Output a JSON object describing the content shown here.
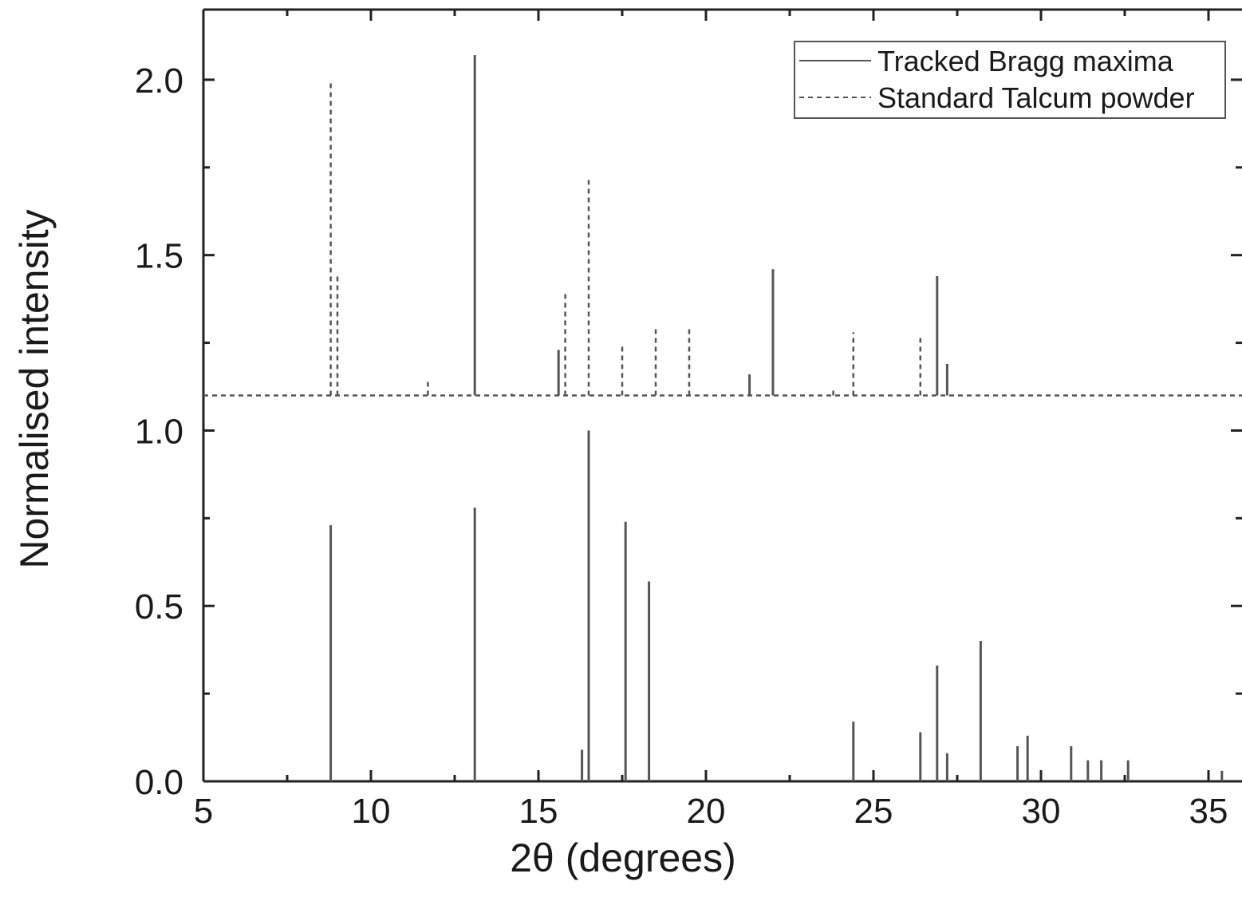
{
  "chart_data": {
    "type": "bar",
    "subtype": "stick-pattern",
    "title": "",
    "xlabel": "2θ (degrees)",
    "ylabel": "Normalised intensity",
    "xlim": [
      5,
      36
    ],
    "ylim": [
      0,
      2.2
    ],
    "x_ticks": [
      "5",
      "10",
      "15",
      "20",
      "25",
      "30",
      "35"
    ],
    "y_ticks": [
      "0.0",
      "0.5",
      "1.0",
      "1.5",
      "2.0"
    ],
    "grid": false,
    "legend_position": "top-right",
    "series": [
      {
        "name": "Tracked Bragg maxima",
        "line_style": "solid",
        "baseline": 0,
        "points": [
          {
            "x": 8.8,
            "y": 0.73
          },
          {
            "x": 13.1,
            "y": 0.78
          },
          {
            "x": 16.3,
            "y": 0.09
          },
          {
            "x": 16.5,
            "y": 1.0
          },
          {
            "x": 17.6,
            "y": 0.74
          },
          {
            "x": 18.3,
            "y": 0.57
          },
          {
            "x": 24.4,
            "y": 0.17
          },
          {
            "x": 26.4,
            "y": 0.14
          },
          {
            "x": 26.9,
            "y": 0.33
          },
          {
            "x": 27.2,
            "y": 0.08
          },
          {
            "x": 28.2,
            "y": 0.4
          },
          {
            "x": 29.3,
            "y": 0.1
          },
          {
            "x": 29.6,
            "y": 0.13
          },
          {
            "x": 30.9,
            "y": 0.1
          },
          {
            "x": 31.4,
            "y": 0.06
          },
          {
            "x": 31.8,
            "y": 0.06
          },
          {
            "x": 32.6,
            "y": 0.06
          },
          {
            "x": 35.4,
            "y": 0.03
          }
        ]
      },
      {
        "name": "Standard Talcum powder",
        "line_style": "dashed",
        "baseline": 1.1,
        "points": [
          {
            "x": 8.8,
            "y": 2.0
          },
          {
            "x": 9.0,
            "y": 1.44
          },
          {
            "x": 11.7,
            "y": 1.14
          },
          {
            "x": 14.2,
            "y": 1.105
          },
          {
            "x": 15.8,
            "y": 1.39
          },
          {
            "x": 16.5,
            "y": 1.72
          },
          {
            "x": 17.5,
            "y": 1.25
          },
          {
            "x": 18.5,
            "y": 1.3
          },
          {
            "x": 19.5,
            "y": 1.29
          },
          {
            "x": 23.8,
            "y": 1.12
          },
          {
            "x": 24.4,
            "y": 1.28
          },
          {
            "x": 26.4,
            "y": 1.27
          }
        ]
      },
      {
        "name": "",
        "line_style": "solid",
        "baseline": 1.1,
        "points": [
          {
            "x": 13.1,
            "y": 2.07
          },
          {
            "x": 15.6,
            "y": 1.23
          },
          {
            "x": 21.3,
            "y": 1.16
          },
          {
            "x": 22.0,
            "y": 1.46
          },
          {
            "x": 26.9,
            "y": 1.44
          },
          {
            "x": 27.2,
            "y": 1.19
          }
        ]
      }
    ],
    "reference_line": {
      "y": 1.1,
      "line_style": "dashed"
    }
  }
}
